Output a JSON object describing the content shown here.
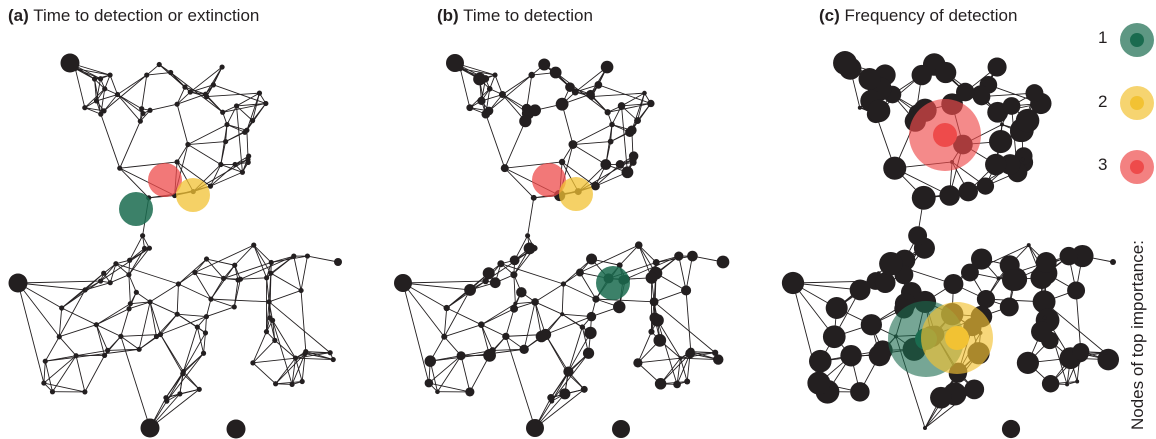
{
  "panels": [
    {
      "letter": "(a)",
      "title": "Time to detection or extinction"
    },
    {
      "letter": "(b)",
      "title": "Time to detection"
    },
    {
      "letter": "(c)",
      "title": "Frequency of detection"
    }
  ],
  "legend": {
    "caption": "Nodes of top importance:",
    "items": [
      {
        "rank": "1",
        "color": "#1a6b4f"
      },
      {
        "rank": "2",
        "color": "#f2c233"
      },
      {
        "rank": "3",
        "color": "#ee4b4b"
      }
    ]
  },
  "colors": {
    "node": "#231f20",
    "edge": "#231f20"
  }
}
